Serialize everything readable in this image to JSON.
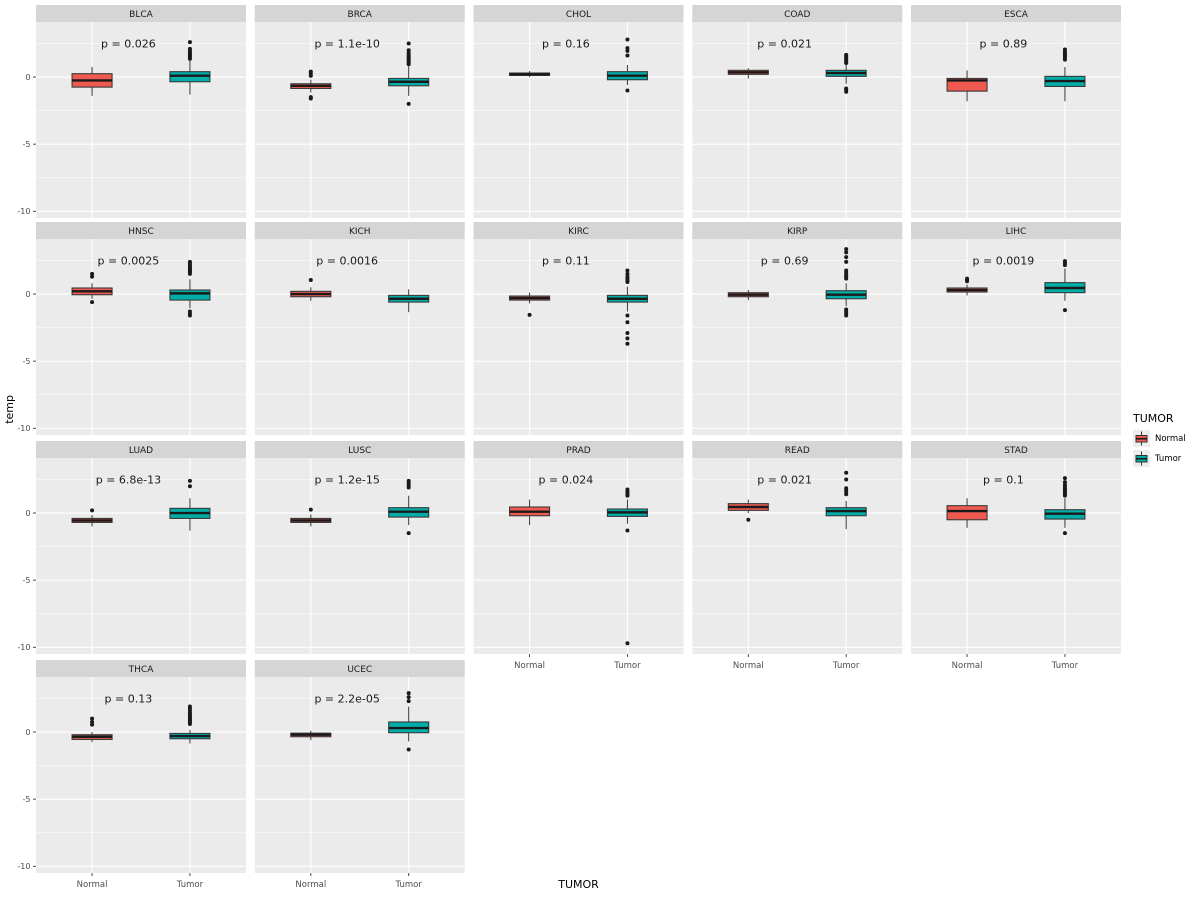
{
  "figure": {
    "panel_bg": "#EBEBEB",
    "strip_bg": "#D5D5D5",
    "strip_text_color": "#1A1A1A",
    "grid_color": "#FFFFFF",
    "tick_label_color": "#4D4D4D",
    "outlier_color": "#1A1A1A"
  },
  "axis": {
    "x_title": "TUMOR",
    "y_title": "temp"
  },
  "legend": {
    "title": "TUMOR",
    "items": [
      {
        "label": "Normal",
        "key": "Normal"
      },
      {
        "label": "Tumor",
        "key": "Tumor"
      }
    ]
  },
  "chart_data": {
    "type": "boxplot",
    "facet_columns": 5,
    "x_categories": [
      "Normal",
      "Tumor"
    ],
    "xlabel": "TUMOR",
    "ylabel": "temp",
    "ylim": [
      -10.5,
      4.1
    ],
    "yticks": [
      0,
      -5,
      -10
    ],
    "yminor": [
      2.5,
      -2.5,
      -7.5
    ],
    "grid": true,
    "legend_position": "right",
    "series_colors": {
      "Normal": "#EF5A50",
      "Tumor": "#00ADA8"
    },
    "facets": [
      {
        "title": "BLCA",
        "p_label": "p = 0.026",
        "boxes": [
          {
            "group": "Normal",
            "whisker_low": -1.4,
            "q1": -0.75,
            "median": -0.25,
            "q3": 0.25,
            "whisker_high": 0.75,
            "outliers": []
          },
          {
            "group": "Tumor",
            "whisker_low": -1.3,
            "q1": -0.35,
            "median": 0.1,
            "q3": 0.4,
            "whisker_high": 1.2,
            "outliers": [
              1.35,
              1.45,
              1.55,
              1.65,
              1.75,
              1.85,
              1.95,
              2.1,
              2.6
            ]
          }
        ]
      },
      {
        "title": "BRCA",
        "p_label": "p = 1.1e-10",
        "boxes": [
          {
            "group": "Normal",
            "whisker_low": -1.15,
            "q1": -0.85,
            "median": -0.65,
            "q3": -0.5,
            "whisker_high": -0.2,
            "outliers": [
              0.1,
              0.25,
              0.4,
              -1.5,
              -1.6
            ]
          },
          {
            "group": "Tumor",
            "whisker_low": -1.4,
            "q1": -0.65,
            "median": -0.35,
            "q3": -0.1,
            "whisker_high": 0.8,
            "outliers": [
              0.95,
              1.05,
              1.15,
              1.25,
              1.35,
              1.45,
              1.55,
              1.65,
              1.8,
              2.0,
              2.5,
              -2.0
            ]
          }
        ]
      },
      {
        "title": "CHOL",
        "p_label": "p = 0.16",
        "boxes": [
          {
            "group": "Normal",
            "whisker_low": 0.0,
            "q1": 0.12,
            "median": 0.2,
            "q3": 0.3,
            "whisker_high": 0.45,
            "outliers": []
          },
          {
            "group": "Tumor",
            "whisker_low": -0.6,
            "q1": -0.2,
            "median": 0.1,
            "q3": 0.4,
            "whisker_high": 0.9,
            "outliers": [
              1.6,
              1.95,
              2.15,
              2.8,
              -1.0
            ]
          }
        ]
      },
      {
        "title": "COAD",
        "p_label": "p = 0.021",
        "boxes": [
          {
            "group": "Normal",
            "whisker_low": -0.1,
            "q1": 0.2,
            "median": 0.35,
            "q3": 0.5,
            "whisker_high": 0.65,
            "outliers": []
          },
          {
            "group": "Tumor",
            "whisker_low": -0.5,
            "q1": 0.05,
            "median": 0.3,
            "q3": 0.5,
            "whisker_high": 0.9,
            "outliers": [
              1.05,
              1.15,
              1.25,
              1.35,
              1.45,
              1.55,
              1.65,
              -0.85,
              -0.95,
              -1.1
            ]
          }
        ]
      },
      {
        "title": "ESCA",
        "p_label": "p = 0.89",
        "boxes": [
          {
            "group": "Normal",
            "whisker_low": -1.8,
            "q1": -1.05,
            "median": -0.25,
            "q3": -0.1,
            "whisker_high": 0.5,
            "outliers": []
          },
          {
            "group": "Tumor",
            "whisker_low": -1.8,
            "q1": -0.7,
            "median": -0.3,
            "q3": 0.05,
            "whisker_high": 0.75,
            "outliers": [
              1.3,
              1.45,
              1.55,
              1.65,
              1.75,
              1.9,
              2.05
            ]
          }
        ]
      },
      {
        "title": "HNSC",
        "p_label": "p = 0.0025",
        "boxes": [
          {
            "group": "Normal",
            "whisker_low": -0.35,
            "q1": -0.05,
            "median": 0.2,
            "q3": 0.45,
            "whisker_high": 0.8,
            "outliers": [
              1.3,
              1.5,
              -0.6
            ]
          },
          {
            "group": "Tumor",
            "whisker_low": -1.05,
            "q1": -0.45,
            "median": 0.05,
            "q3": 0.3,
            "whisker_high": 1.1,
            "outliers": [
              1.5,
              1.6,
              1.7,
              1.8,
              1.9,
              2.0,
              2.1,
              2.25,
              2.4,
              -1.3,
              -1.45,
              -1.6
            ]
          }
        ]
      },
      {
        "title": "KICH",
        "p_label": "p = 0.0016",
        "boxes": [
          {
            "group": "Normal",
            "whisker_low": -0.5,
            "q1": -0.2,
            "median": 0.0,
            "q3": 0.2,
            "whisker_high": 0.5,
            "outliers": [
              1.05
            ]
          },
          {
            "group": "Tumor",
            "whisker_low": -1.35,
            "q1": -0.6,
            "median": -0.35,
            "q3": -0.1,
            "whisker_high": 0.35,
            "outliers": []
          }
        ]
      },
      {
        "title": "KIRC",
        "p_label": "p = 0.11",
        "boxes": [
          {
            "group": "Normal",
            "whisker_low": -0.7,
            "q1": -0.45,
            "median": -0.3,
            "q3": -0.15,
            "whisker_high": 0.1,
            "outliers": [
              -1.55
            ]
          },
          {
            "group": "Tumor",
            "whisker_low": -1.3,
            "q1": -0.6,
            "median": -0.35,
            "q3": -0.1,
            "whisker_high": 0.55,
            "outliers": [
              0.9,
              1.0,
              1.15,
              1.3,
              1.5,
              1.75,
              -1.6,
              -2.1,
              -2.9,
              -3.3,
              -3.7
            ]
          }
        ]
      },
      {
        "title": "KIRP",
        "p_label": "p = 0.69",
        "boxes": [
          {
            "group": "Normal",
            "whisker_low": -0.45,
            "q1": -0.2,
            "median": -0.05,
            "q3": 0.1,
            "whisker_high": 0.3,
            "outliers": []
          },
          {
            "group": "Tumor",
            "whisker_low": -0.9,
            "q1": -0.35,
            "median": -0.05,
            "q3": 0.25,
            "whisker_high": 0.8,
            "outliers": [
              1.15,
              1.25,
              1.35,
              1.45,
              1.6,
              1.75,
              2.4,
              2.75,
              3.1,
              3.35,
              -1.15,
              -1.3,
              -1.45,
              -1.6
            ]
          }
        ]
      },
      {
        "title": "LIHC",
        "p_label": "p = 0.0019",
        "boxes": [
          {
            "group": "Normal",
            "whisker_low": -0.1,
            "q1": 0.15,
            "median": 0.3,
            "q3": 0.45,
            "whisker_high": 0.7,
            "outliers": [
              0.95,
              1.05,
              1.15
            ]
          },
          {
            "group": "Tumor",
            "whisker_low": -0.5,
            "q1": 0.1,
            "median": 0.45,
            "q3": 0.85,
            "whisker_high": 1.9,
            "outliers": [
              2.15,
              2.3,
              2.45,
              -1.2
            ]
          }
        ]
      },
      {
        "title": "LUAD",
        "p_label": "p = 6.8e-13",
        "boxes": [
          {
            "group": "Normal",
            "whisker_low": -1.0,
            "q1": -0.7,
            "median": -0.55,
            "q3": -0.4,
            "whisker_high": -0.15,
            "outliers": [
              0.2
            ]
          },
          {
            "group": "Tumor",
            "whisker_low": -1.3,
            "q1": -0.4,
            "median": 0.0,
            "q3": 0.35,
            "whisker_high": 1.1,
            "outliers": [
              2.0,
              2.4
            ]
          }
        ]
      },
      {
        "title": "LUSC",
        "p_label": "p = 1.2e-15",
        "boxes": [
          {
            "group": "Normal",
            "whisker_low": -1.0,
            "q1": -0.7,
            "median": -0.55,
            "q3": -0.4,
            "whisker_high": -0.1,
            "outliers": [
              0.25
            ]
          },
          {
            "group": "Tumor",
            "whisker_low": -0.9,
            "q1": -0.3,
            "median": 0.1,
            "q3": 0.4,
            "whisker_high": 1.3,
            "outliers": [
              1.9,
              2.05,
              2.2,
              2.4,
              -1.5
            ]
          }
        ]
      },
      {
        "title": "PRAD",
        "p_label": "p = 0.024",
        "boxes": [
          {
            "group": "Normal",
            "whisker_low": -0.9,
            "q1": -0.2,
            "median": 0.1,
            "q3": 0.45,
            "whisker_high": 1.0,
            "outliers": []
          },
          {
            "group": "Tumor",
            "whisker_low": -0.8,
            "q1": -0.25,
            "median": 0.05,
            "q3": 0.3,
            "whisker_high": 1.0,
            "outliers": [
              1.3,
              1.4,
              1.5,
              1.6,
              1.75,
              -1.3,
              -9.7
            ]
          }
        ]
      },
      {
        "title": "READ",
        "p_label": "p = 0.021",
        "boxes": [
          {
            "group": "Normal",
            "whisker_low": 0.0,
            "q1": 0.2,
            "median": 0.45,
            "q3": 0.7,
            "whisker_high": 1.0,
            "outliers": [
              -0.5
            ]
          },
          {
            "group": "Tumor",
            "whisker_low": -1.2,
            "q1": -0.2,
            "median": 0.15,
            "q3": 0.4,
            "whisker_high": 0.9,
            "outliers": [
              1.4,
              1.55,
              1.7,
              1.85,
              2.5,
              3.0
            ]
          }
        ]
      },
      {
        "title": "STAD",
        "p_label": "p = 0.1",
        "boxes": [
          {
            "group": "Normal",
            "whisker_low": -1.1,
            "q1": -0.5,
            "median": 0.15,
            "q3": 0.55,
            "whisker_high": 1.1,
            "outliers": []
          },
          {
            "group": "Tumor",
            "whisker_low": -1.1,
            "q1": -0.45,
            "median": -0.05,
            "q3": 0.25,
            "whisker_high": 1.1,
            "outliers": [
              1.3,
              1.4,
              1.5,
              1.6,
              1.7,
              1.8,
              1.95,
              2.1,
              2.3,
              2.6,
              -1.5
            ]
          }
        ]
      },
      {
        "title": "THCA",
        "p_label": "p = 0.13",
        "boxes": [
          {
            "group": "Normal",
            "whisker_low": -0.75,
            "q1": -0.55,
            "median": -0.35,
            "q3": -0.2,
            "whisker_high": 0.0,
            "outliers": [
              0.55,
              0.75,
              1.0
            ]
          },
          {
            "group": "Tumor",
            "whisker_low": -0.85,
            "q1": -0.5,
            "median": -0.3,
            "q3": -0.1,
            "whisker_high": 0.15,
            "outliers": [
              0.6,
              0.7,
              0.8,
              0.9,
              1.0,
              1.1,
              1.2,
              1.3,
              1.45,
              1.6,
              1.75,
              1.9
            ]
          }
        ]
      },
      {
        "title": "UCEC",
        "p_label": "p = 2.2e-05",
        "boxes": [
          {
            "group": "Normal",
            "whisker_low": -0.6,
            "q1": -0.35,
            "median": -0.2,
            "q3": -0.08,
            "whisker_high": 0.1,
            "outliers": []
          },
          {
            "group": "Tumor",
            "whisker_low": -0.7,
            "q1": -0.05,
            "median": 0.3,
            "q3": 0.75,
            "whisker_high": 1.9,
            "outliers": [
              2.3,
              2.6,
              2.9,
              -1.3
            ]
          }
        ]
      }
    ]
  }
}
